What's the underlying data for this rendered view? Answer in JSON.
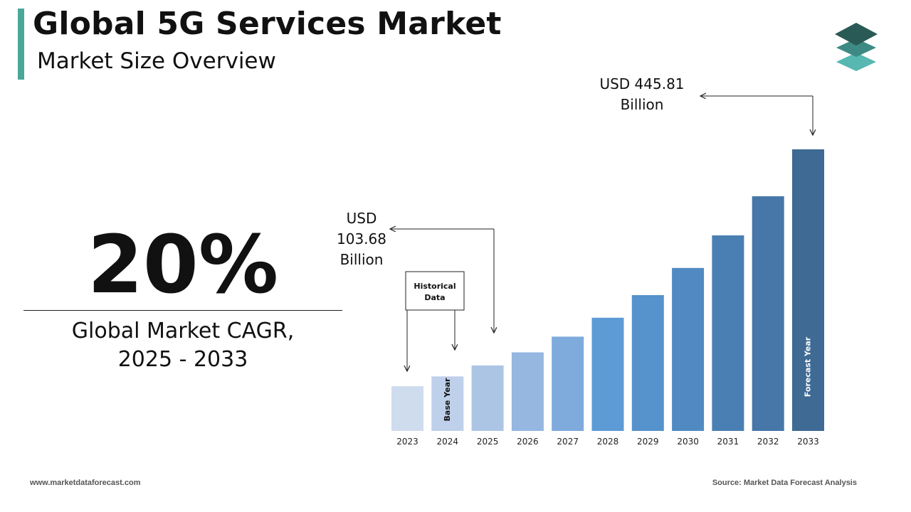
{
  "header": {
    "title": "Global 5G Services Market",
    "subtitle": "Market Size Overview"
  },
  "cagr": {
    "value": "20%",
    "label_line1": "Global Market CAGR,",
    "label_line2": "2025 - 2033"
  },
  "chart_data": {
    "type": "bar",
    "categories": [
      "2023",
      "2024",
      "2025",
      "2026",
      "2027",
      "2028",
      "2029",
      "2030",
      "2031",
      "2032",
      "2033"
    ],
    "values": [
      70.8,
      86.4,
      103.68,
      124.4,
      149.3,
      179.2,
      215.0,
      258.0,
      309.6,
      371.5,
      445.81
    ],
    "title": "",
    "xlabel": "",
    "ylabel": "",
    "ylim": [
      0,
      445.81
    ],
    "colors": [
      "#cfdcee",
      "#bed0ea",
      "#adc5e5",
      "#95b7e0",
      "#7eaadc",
      "#5d9bd6",
      "#5692cc",
      "#518ac2",
      "#4a7fb3",
      "#4777a8",
      "#3e6a94"
    ],
    "bar_labels": {
      "1": "Base Year",
      "10": "Forecast Year"
    },
    "callouts": [
      {
        "text_line1": "USD",
        "text_line2": "103.68",
        "text_line3": "Billion",
        "target_category": "2025"
      },
      {
        "text_line1": "USD 445.81",
        "text_line2": "Billion",
        "target_category": "2033"
      }
    ],
    "historical_box": {
      "line1": "Historical",
      "line2": "Data",
      "targets": [
        "2023",
        "2024"
      ]
    }
  },
  "footer": {
    "website": "www.marketdataforecast.com",
    "source": "Source: Market Data Forecast Analysis"
  }
}
